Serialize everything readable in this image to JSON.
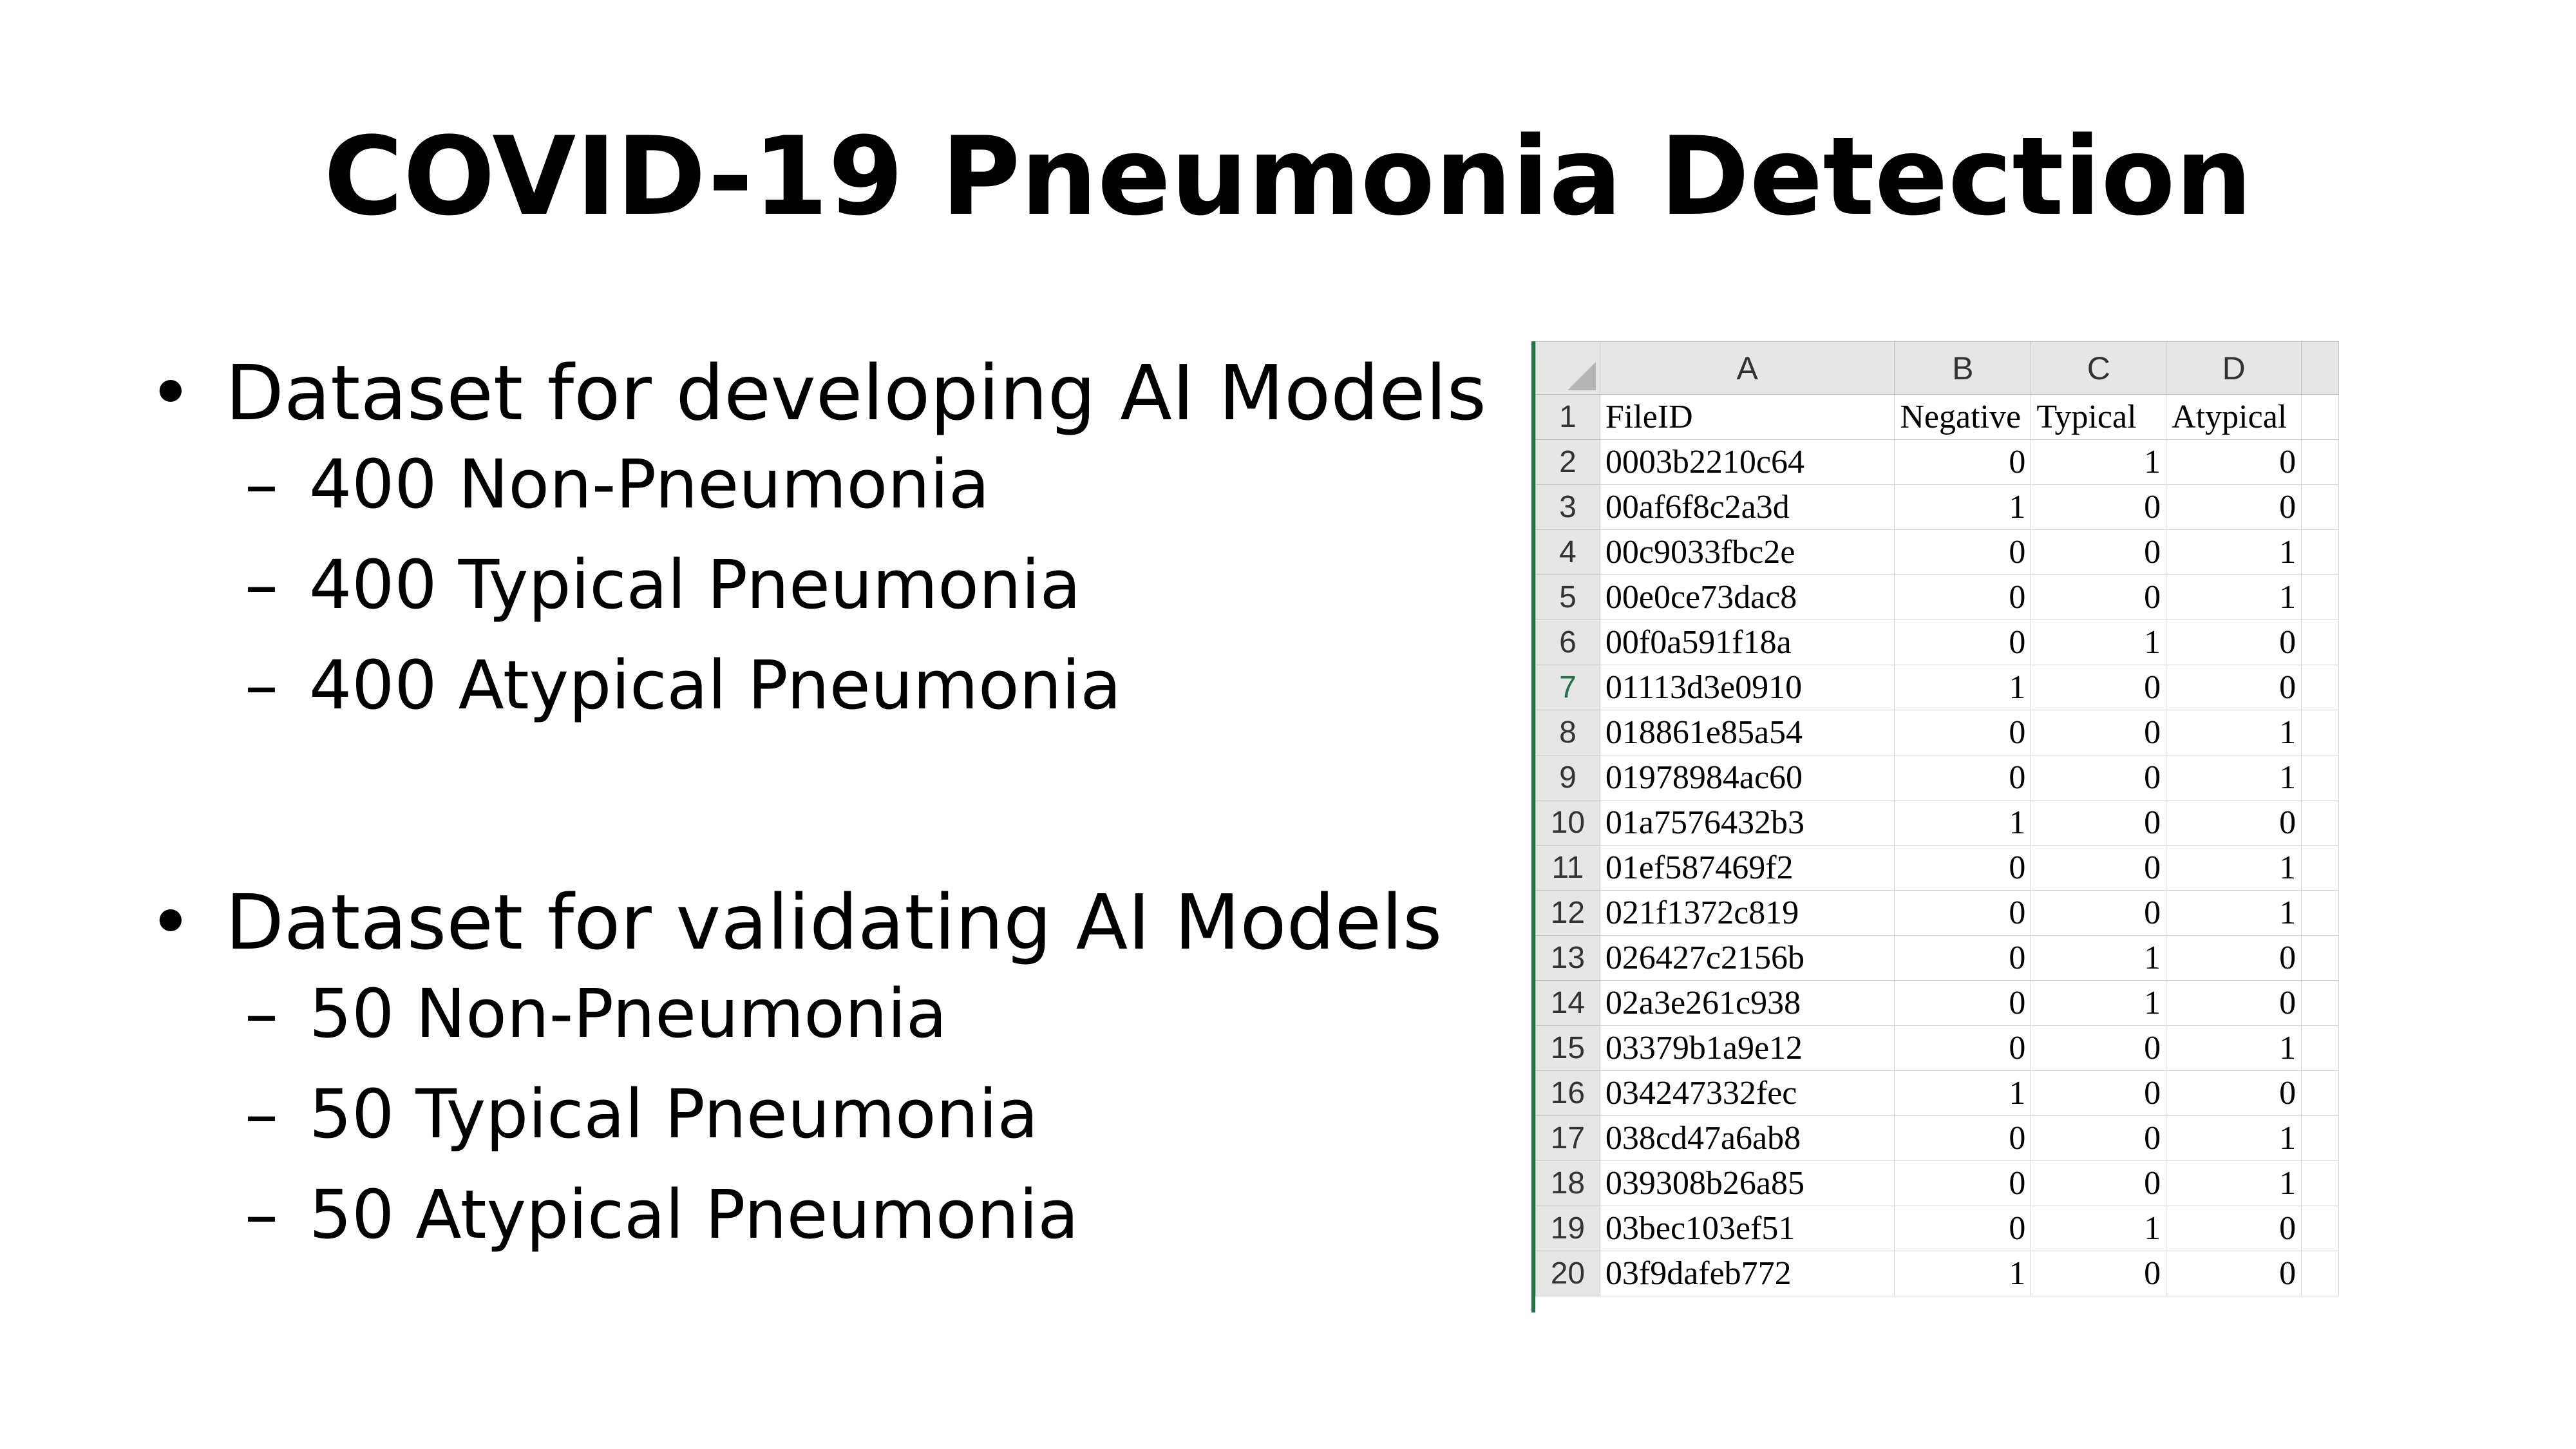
{
  "slide": {
    "title": "COVID-19 Pneumonia Detection",
    "sections": [
      {
        "bullet": "•",
        "heading": "Dataset for developing AI Models",
        "items": [
          "400 Non-Pneumonia",
          "400 Typical Pneumonia",
          "400 Atypical Pneumonia"
        ]
      },
      {
        "bullet": "•",
        "heading": "Dataset for validating AI Models",
        "items": [
          "50 Non-Pneumonia",
          "50 Typical Pneumonia",
          "50 Atypical Pneumonia"
        ]
      }
    ],
    "dash": "–"
  },
  "sheet": {
    "column_headers": [
      "A",
      "B",
      "C",
      "D"
    ],
    "header_row": {
      "num": "1",
      "cells": [
        "FileID",
        "Negative",
        "Typical",
        "Atypical"
      ]
    },
    "rows": [
      {
        "num": "2",
        "id": "0003b2210c64",
        "neg": "0",
        "typ": "1",
        "aty": "0"
      },
      {
        "num": "3",
        "id": "00af6f8c2a3d",
        "neg": "1",
        "typ": "0",
        "aty": "0"
      },
      {
        "num": "4",
        "id": "00c9033fbc2e",
        "neg": "0",
        "typ": "0",
        "aty": "1"
      },
      {
        "num": "5",
        "id": "00e0ce73dac8",
        "neg": "0",
        "typ": "0",
        "aty": "1"
      },
      {
        "num": "6",
        "id": "00f0a591f18a",
        "neg": "0",
        "typ": "1",
        "aty": "0"
      },
      {
        "num": "7",
        "id": "01113d3e0910",
        "neg": "1",
        "typ": "0",
        "aty": "0"
      },
      {
        "num": "8",
        "id": "018861e85a54",
        "neg": "0",
        "typ": "0",
        "aty": "1"
      },
      {
        "num": "9",
        "id": "01978984ac60",
        "neg": "0",
        "typ": "0",
        "aty": "1"
      },
      {
        "num": "10",
        "id": "01a7576432b3",
        "neg": "1",
        "typ": "0",
        "aty": "0"
      },
      {
        "num": "11",
        "id": "01ef587469f2",
        "neg": "0",
        "typ": "0",
        "aty": "1"
      },
      {
        "num": "12",
        "id": "021f1372c819",
        "neg": "0",
        "typ": "0",
        "aty": "1"
      },
      {
        "num": "13",
        "id": "026427c2156b",
        "neg": "0",
        "typ": "1",
        "aty": "0"
      },
      {
        "num": "14",
        "id": "02a3e261c938",
        "neg": "0",
        "typ": "1",
        "aty": "0"
      },
      {
        "num": "15",
        "id": "03379b1a9e12",
        "neg": "0",
        "typ": "0",
        "aty": "1"
      },
      {
        "num": "16",
        "id": "034247332fec",
        "neg": "1",
        "typ": "0",
        "aty": "0"
      },
      {
        "num": "17",
        "id": "038cd47a6ab8",
        "neg": "0",
        "typ": "0",
        "aty": "1"
      },
      {
        "num": "18",
        "id": "039308b26a85",
        "neg": "0",
        "typ": "0",
        "aty": "1"
      },
      {
        "num": "19",
        "id": "03bec103ef51",
        "neg": "0",
        "typ": "1",
        "aty": "0"
      },
      {
        "num": "20",
        "id": "03f9dafeb772",
        "neg": "1",
        "typ": "0",
        "aty": "0"
      }
    ],
    "selected_row": "7",
    "colors": {
      "accent": "#217346",
      "header_bg": "#e6e6e6",
      "gridline": "#d4d4d4"
    }
  }
}
